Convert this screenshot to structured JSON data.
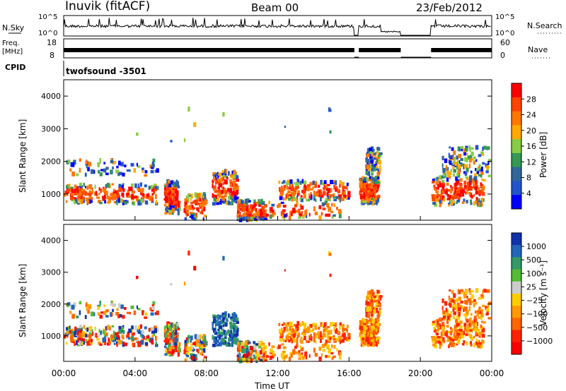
{
  "header": {
    "station": "Inuvik (fitACF)",
    "beam": "Beam 00",
    "date": "23/Feb/2012",
    "cpid_label": "CPID",
    "cpid_value": "twofsound -3501"
  },
  "chart_data": [
    {
      "type": "line",
      "role": "noise-panel",
      "left_label": "N.Sky",
      "right_label": "N.Search",
      "left_ticks": [
        "10^5",
        "10^0"
      ],
      "right_ticks": [
        "10^5",
        "10^0"
      ]
    },
    {
      "type": "line",
      "role": "frequency-panel",
      "left_label": "Freq.",
      "left_unit": "[MHz]",
      "left_ticks": [
        "18",
        "8"
      ],
      "right_label": "Nave",
      "right_ticks": [
        "60",
        "0"
      ]
    },
    {
      "type": "heatmap",
      "role": "power",
      "ylabel": "Slant Range [km]",
      "ylim": [
        200,
        4500
      ],
      "yticks": [
        "4000",
        "3000",
        "2000",
        "1000"
      ],
      "xlim": [
        0,
        24
      ],
      "colorbar": {
        "label": "Power [dB]",
        "ticks": [
          "28",
          "24",
          "20",
          "16",
          "12",
          "8",
          "4"
        ],
        "colors": [
          "#ff0000",
          "#ff4400",
          "#ff7700",
          "#ffaa00",
          "#88cc44",
          "#339955",
          "#336699",
          "#2255cc",
          "#0000ff"
        ]
      }
    },
    {
      "type": "heatmap",
      "role": "velocity",
      "ylabel": "Slant Range [km]",
      "ylim": [
        200,
        4500
      ],
      "yticks": [
        "4000",
        "3000",
        "2000",
        "1000"
      ],
      "xlim": [
        0,
        24
      ],
      "xticks": [
        "00:00",
        "04:00",
        "08:00",
        "12:00",
        "16:00",
        "20:00",
        "00:00"
      ],
      "xlabel": "Time UT",
      "colorbar": {
        "label": "Velocity [m s⁻¹]",
        "ticks": [
          "1000",
          "500",
          "100",
          "25",
          "−25",
          "−100",
          "−500",
          "−1000"
        ],
        "colors": [
          "#1133aa",
          "#2266bb",
          "#339966",
          "#55bb33",
          "#cccccc",
          "#ffcc00",
          "#ff9900",
          "#ff6600",
          "#ff2200",
          "#ff0000"
        ]
      }
    }
  ]
}
